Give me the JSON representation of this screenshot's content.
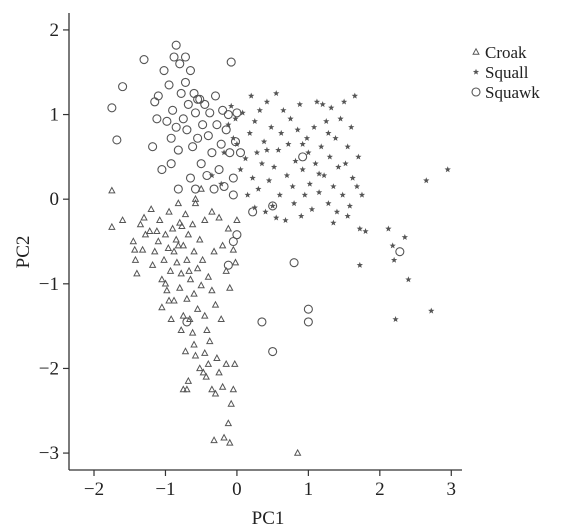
{
  "chart_data": {
    "type": "scatter",
    "xlabel": "PC1",
    "ylabel": "PC2",
    "xlim": [
      -2.35,
      3.15
    ],
    "ylim": [
      -3.2,
      2.2
    ],
    "xticks": [
      -2,
      -1,
      0,
      1,
      2,
      3
    ],
    "yticks": [
      -3,
      -2,
      -1,
      0,
      1,
      2
    ],
    "xtick_labels": [
      "−2",
      "−1",
      "0",
      "1",
      "2",
      "3"
    ],
    "ytick_labels": [
      "−3",
      "−2",
      "−1",
      "0",
      "1",
      "2"
    ],
    "grid": false,
    "legend_position": "top-right",
    "series": [
      {
        "name": "Croak",
        "marker": "triangle",
        "color": "#555555",
        "points": [
          [
            -1.75,
            0.1
          ],
          [
            -1.75,
            -0.33
          ],
          [
            -1.6,
            -0.25
          ],
          [
            -1.45,
            -0.5
          ],
          [
            -1.43,
            -0.6
          ],
          [
            -1.42,
            -0.72
          ],
          [
            -1.4,
            -0.88
          ],
          [
            -1.32,
            -0.6
          ],
          [
            -1.3,
            -0.22
          ],
          [
            -1.28,
            -0.42
          ],
          [
            -1.22,
            -0.38
          ],
          [
            -1.2,
            -0.12
          ],
          [
            -1.15,
            -0.62
          ],
          [
            -1.12,
            -0.38
          ],
          [
            -1.1,
            -0.5
          ],
          [
            -1.08,
            -0.25
          ],
          [
            -1.05,
            -0.95
          ],
          [
            -1.05,
            -1.28
          ],
          [
            -1.02,
            -0.72
          ],
          [
            -1.0,
            -0.42
          ],
          [
            -0.98,
            -1.08
          ],
          [
            -0.96,
            -0.58
          ],
          [
            -0.95,
            -0.15
          ],
          [
            -0.93,
            -0.85
          ],
          [
            -0.92,
            -1.42
          ],
          [
            -0.9,
            -0.35
          ],
          [
            -0.88,
            -0.62
          ],
          [
            -0.88,
            -1.2
          ],
          [
            -0.85,
            -0.48
          ],
          [
            -0.84,
            -0.75
          ],
          [
            -0.82,
            -0.05
          ],
          [
            -0.8,
            -1.05
          ],
          [
            -0.8,
            -0.28
          ],
          [
            -0.78,
            -0.88
          ],
          [
            -0.75,
            -1.38
          ],
          [
            -0.75,
            -0.55
          ],
          [
            -0.72,
            -0.18
          ],
          [
            -0.7,
            -1.18
          ],
          [
            -0.7,
            -0.72
          ],
          [
            -0.68,
            -0.42
          ],
          [
            -0.66,
            -1.42
          ],
          [
            -0.65,
            -0.95
          ],
          [
            -0.62,
            -0.3
          ],
          [
            -0.6,
            -0.62
          ],
          [
            -0.6,
            -1.12
          ],
          [
            -0.58,
            -0.05
          ],
          [
            -0.55,
            -0.82
          ],
          [
            -0.55,
            -1.3
          ],
          [
            -0.52,
            -0.48
          ],
          [
            -0.5,
            -1.02
          ],
          [
            -0.48,
            -0.72
          ],
          [
            -0.45,
            -0.25
          ],
          [
            -0.45,
            -1.38
          ],
          [
            -0.42,
            -1.55
          ],
          [
            -0.4,
            -0.92
          ],
          [
            -0.38,
            -1.68
          ],
          [
            -0.35,
            -1.08
          ],
          [
            -0.32,
            -0.62
          ],
          [
            -0.3,
            -1.25
          ],
          [
            -0.28,
            -1.88
          ],
          [
            -0.25,
            -2.05
          ],
          [
            -0.22,
            -1.42
          ],
          [
            -0.45,
            -1.82
          ],
          [
            -0.4,
            -1.95
          ],
          [
            -0.43,
            -2.1
          ],
          [
            -0.47,
            -2.05
          ],
          [
            -0.35,
            -2.25
          ],
          [
            -0.3,
            -2.3
          ],
          [
            -0.2,
            -2.22
          ],
          [
            -0.15,
            -1.95
          ],
          [
            -0.05,
            -2.25
          ],
          [
            -0.08,
            -2.42
          ],
          [
            -0.03,
            -1.95
          ],
          [
            -0.12,
            -2.65
          ],
          [
            -0.18,
            -2.82
          ],
          [
            -0.1,
            -2.88
          ],
          [
            -0.32,
            -2.85
          ],
          [
            -0.52,
            -2.0
          ],
          [
            -0.58,
            -1.85
          ],
          [
            -0.68,
            -2.15
          ],
          [
            -0.7,
            -2.25
          ],
          [
            -0.75,
            -2.25
          ],
          [
            -0.6,
            -1.72
          ],
          [
            -0.72,
            -1.8
          ],
          [
            -1.0,
            -1.0
          ],
          [
            -0.95,
            -1.2
          ],
          [
            -0.78,
            -1.55
          ],
          [
            -0.62,
            -1.58
          ],
          [
            -0.2,
            -0.55
          ],
          [
            -0.15,
            -0.85
          ],
          [
            -0.12,
            -0.35
          ],
          [
            -0.1,
            -1.05
          ],
          [
            -0.05,
            -0.6
          ],
          [
            0.0,
            -0.25
          ],
          [
            -0.02,
            -0.75
          ],
          [
            -0.25,
            -0.22
          ],
          [
            -1.35,
            -0.3
          ],
          [
            -1.18,
            -0.78
          ],
          [
            -0.82,
            -0.55
          ],
          [
            -0.77,
            -0.32
          ],
          [
            -0.67,
            -0.85
          ],
          [
            -0.58,
            0.0
          ],
          [
            -0.5,
            0.12
          ],
          [
            -0.35,
            -0.15
          ],
          [
            0.85,
            -3.0
          ]
        ]
      },
      {
        "name": "Squall",
        "marker": "star",
        "color": "#555555",
        "points": [
          [
            -0.35,
            0.28
          ],
          [
            -0.22,
            0.18
          ],
          [
            -0.18,
            0.55
          ],
          [
            -0.12,
            0.88
          ],
          [
            -0.08,
            1.1
          ],
          [
            -0.05,
            0.72
          ],
          [
            -0.02,
            0.95
          ],
          [
            0.0,
            0.65
          ],
          [
            0.05,
            0.35
          ],
          [
            0.08,
            1.02
          ],
          [
            0.12,
            0.48
          ],
          [
            0.15,
            0.05
          ],
          [
            0.18,
            0.78
          ],
          [
            0.2,
            1.22
          ],
          [
            0.22,
            0.25
          ],
          [
            0.25,
            0.92
          ],
          [
            0.28,
            0.55
          ],
          [
            0.3,
            0.12
          ],
          [
            0.32,
            1.05
          ],
          [
            0.35,
            0.42
          ],
          [
            0.38,
            0.68
          ],
          [
            0.4,
            -0.15
          ],
          [
            0.42,
            1.15
          ],
          [
            0.45,
            0.22
          ],
          [
            0.48,
            0.85
          ],
          [
            0.5,
            -0.08
          ],
          [
            0.52,
            0.38
          ],
          [
            0.55,
            1.25
          ],
          [
            0.58,
            0.58
          ],
          [
            0.6,
            0.05
          ],
          [
            0.62,
            0.78
          ],
          [
            0.65,
            1.05
          ],
          [
            0.68,
            -0.25
          ],
          [
            0.7,
            0.28
          ],
          [
            0.72,
            0.65
          ],
          [
            0.75,
            0.95
          ],
          [
            0.78,
            0.15
          ],
          [
            0.8,
            -0.05
          ],
          [
            0.82,
            0.45
          ],
          [
            0.85,
            0.82
          ],
          [
            0.88,
            1.12
          ],
          [
            0.9,
            -0.2
          ],
          [
            0.92,
            0.35
          ],
          [
            0.95,
            0.05
          ],
          [
            0.98,
            0.72
          ],
          [
            1.0,
            0.55
          ],
          [
            1.02,
            0.18
          ],
          [
            1.05,
            -0.12
          ],
          [
            1.08,
            0.85
          ],
          [
            1.1,
            0.42
          ],
          [
            1.12,
            1.15
          ],
          [
            1.15,
            0.08
          ],
          [
            1.18,
            0.62
          ],
          [
            1.2,
            1.12
          ],
          [
            1.22,
            0.28
          ],
          [
            1.25,
            0.92
          ],
          [
            1.28,
            -0.05
          ],
          [
            1.3,
            0.5
          ],
          [
            1.32,
            1.08
          ],
          [
            1.35,
            0.15
          ],
          [
            1.38,
            0.72
          ],
          [
            1.4,
            -0.15
          ],
          [
            1.42,
            0.38
          ],
          [
            1.45,
            0.95
          ],
          [
            1.48,
            0.05
          ],
          [
            1.5,
            1.15
          ],
          [
            1.52,
            0.42
          ],
          [
            1.55,
            0.62
          ],
          [
            1.58,
            -0.08
          ],
          [
            1.6,
            0.85
          ],
          [
            1.62,
            0.25
          ],
          [
            1.65,
            1.22
          ],
          [
            1.68,
            0.15
          ],
          [
            1.7,
            0.5
          ],
          [
            1.72,
            -0.35
          ],
          [
            1.75,
            0.05
          ],
          [
            1.55,
            -0.2
          ],
          [
            1.35,
            -0.28
          ],
          [
            1.15,
            0.3
          ],
          [
            2.12,
            -0.35
          ],
          [
            2.18,
            -0.55
          ],
          [
            2.2,
            -0.72
          ],
          [
            2.35,
            -0.45
          ],
          [
            2.4,
            -0.95
          ],
          [
            2.22,
            -1.42
          ],
          [
            2.72,
            -1.32
          ],
          [
            2.65,
            0.22
          ],
          [
            2.95,
            0.35
          ],
          [
            1.72,
            -0.78
          ],
          [
            1.8,
            -0.38
          ],
          [
            0.55,
            -0.22
          ],
          [
            0.25,
            -0.1
          ],
          [
            0.92,
            0.65
          ],
          [
            0.42,
            0.58
          ],
          [
            1.28,
            0.78
          ]
        ]
      },
      {
        "name": "Squawk",
        "marker": "circle",
        "color": "#555555",
        "points": [
          [
            -1.75,
            1.08
          ],
          [
            -1.68,
            0.7
          ],
          [
            -1.6,
            1.33
          ],
          [
            -1.3,
            1.65
          ],
          [
            -1.18,
            0.62
          ],
          [
            -1.15,
            1.15
          ],
          [
            -1.12,
            0.95
          ],
          [
            -1.1,
            1.22
          ],
          [
            -1.05,
            0.35
          ],
          [
            -1.02,
            1.52
          ],
          [
            -0.98,
            0.92
          ],
          [
            -0.95,
            1.35
          ],
          [
            -0.92,
            0.72
          ],
          [
            -0.9,
            1.05
          ],
          [
            -0.88,
            1.68
          ],
          [
            -0.85,
            1.82
          ],
          [
            -0.82,
            0.58
          ],
          [
            -0.8,
            1.6
          ],
          [
            -0.78,
            1.25
          ],
          [
            -0.75,
            0.95
          ],
          [
            -0.72,
            1.38
          ],
          [
            -0.7,
            0.82
          ],
          [
            -0.68,
            1.12
          ],
          [
            -0.65,
            1.52
          ],
          [
            -0.62,
            0.62
          ],
          [
            -0.6,
            1.25
          ],
          [
            -0.58,
            1.02
          ],
          [
            -0.55,
            0.72
          ],
          [
            -0.52,
            1.18
          ],
          [
            -0.5,
            0.42
          ],
          [
            -0.48,
            0.88
          ],
          [
            -0.45,
            1.12
          ],
          [
            -0.42,
            0.28
          ],
          [
            -0.4,
            0.75
          ],
          [
            -0.38,
            1.02
          ],
          [
            -0.35,
            0.55
          ],
          [
            -0.32,
            0.12
          ],
          [
            -0.3,
            1.22
          ],
          [
            -0.28,
            0.88
          ],
          [
            -0.25,
            0.35
          ],
          [
            -0.22,
            0.65
          ],
          [
            -0.2,
            1.05
          ],
          [
            -0.18,
            0.15
          ],
          [
            -0.15,
            0.82
          ],
          [
            -0.12,
            1.0
          ],
          [
            -0.1,
            0.55
          ],
          [
            -0.08,
            1.62
          ],
          [
            -0.05,
            0.25
          ],
          [
            -0.02,
            0.68
          ],
          [
            0.0,
            1.02
          ],
          [
            0.05,
            0.55
          ],
          [
            -0.65,
            0.25
          ],
          [
            -0.82,
            0.12
          ],
          [
            -0.58,
            0.12
          ],
          [
            -0.05,
            0.05
          ],
          [
            0.0,
            -0.42
          ],
          [
            -0.05,
            -0.5
          ],
          [
            -0.12,
            -0.78
          ],
          [
            0.22,
            -0.15
          ],
          [
            0.5,
            -0.08
          ],
          [
            0.8,
            -0.75
          ],
          [
            1.0,
            -1.3
          ],
          [
            1.0,
            -1.45
          ],
          [
            0.35,
            -1.45
          ],
          [
            0.5,
            -1.8
          ],
          [
            0.92,
            0.5
          ],
          [
            2.28,
            -0.62
          ],
          [
            -0.7,
            -1.45
          ],
          [
            -0.55,
            1.18
          ],
          [
            -0.92,
            0.42
          ],
          [
            -0.85,
            0.85
          ],
          [
            -0.72,
            1.68
          ]
        ]
      }
    ]
  },
  "legend": {
    "items": [
      {
        "label": "Croak",
        "marker": "triangle"
      },
      {
        "label": "Squall",
        "marker": "star"
      },
      {
        "label": "Squawk",
        "marker": "circle"
      }
    ]
  }
}
